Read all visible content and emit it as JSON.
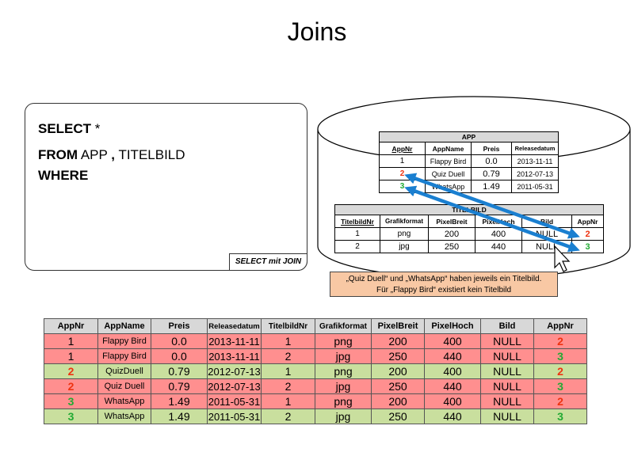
{
  "title": "Joins",
  "sql": {
    "select_kw": "SELECT",
    "select_rest": " *",
    "from_kw": "FROM",
    "from_table1": "APP",
    "comma": ",",
    "from_table2": "TITELBILD",
    "where_kw": "WHERE",
    "footer_label": "SELECT mit JOIN"
  },
  "app_table": {
    "caption": "APP",
    "headers": [
      "AppNr",
      "AppName",
      "Preis",
      "Releasedatum"
    ],
    "rows": [
      {
        "nr": "1",
        "name": "Flappy Bird",
        "preis": "0.0",
        "datum": "2013-11-11"
      },
      {
        "nr": "2",
        "name": "Quiz Duell",
        "preis": "0.79",
        "datum": "2012-07-13"
      },
      {
        "nr": "3",
        "name": "WhatsApp",
        "preis": "1.49",
        "datum": "2011-05-31"
      }
    ]
  },
  "titel_table": {
    "caption": "TITELBILD",
    "headers": [
      "TitelbildNr",
      "Grafikformat",
      "PixelBreit",
      "PixelHoch",
      "Bild",
      "AppNr"
    ],
    "rows": [
      {
        "nr": "1",
        "format": "png",
        "breit": "200",
        "hoch": "400",
        "bild": "NULL",
        "app": "2"
      },
      {
        "nr": "2",
        "format": "jpg",
        "breit": "250",
        "hoch": "440",
        "bild": "NULL",
        "app": "3"
      }
    ]
  },
  "note": {
    "line1": "„Quiz Duell“ und „WhatsApp“ haben jeweils ein Titelbild.",
    "line2": "Für „Flappy Bird“ existiert kein Titelbild"
  },
  "result": {
    "headers": [
      "AppNr",
      "AppName",
      "Preis",
      "Releasedatum",
      "TitelbildNr",
      "Grafikformat",
      "PixelBreit",
      "PixelHoch",
      "Bild",
      "AppNr"
    ],
    "rows": [
      {
        "nr": "1",
        "name": "Flappy Bird",
        "preis": "0.0",
        "datum": "2013-11-11",
        "tnr": "1",
        "format": "png",
        "breit": "200",
        "hoch": "400",
        "bild": "NULL",
        "app": "2",
        "match": false
      },
      {
        "nr": "1",
        "name": "Flappy Bird",
        "preis": "0.0",
        "datum": "2013-11-11",
        "tnr": "2",
        "format": "jpg",
        "breit": "250",
        "hoch": "440",
        "bild": "NULL",
        "app": "3",
        "match": false
      },
      {
        "nr": "2",
        "name": "QuizDuell",
        "preis": "0.79",
        "datum": "2012-07-13",
        "tnr": "1",
        "format": "png",
        "breit": "200",
        "hoch": "400",
        "bild": "NULL",
        "app": "2",
        "match": true
      },
      {
        "nr": "2",
        "name": "Quiz Duell",
        "preis": "0.79",
        "datum": "2012-07-13",
        "tnr": "2",
        "format": "jpg",
        "breit": "250",
        "hoch": "440",
        "bild": "NULL",
        "app": "3",
        "match": false
      },
      {
        "nr": "3",
        "name": "WhatsApp",
        "preis": "1.49",
        "datum": "2011-05-31",
        "tnr": "1",
        "format": "png",
        "breit": "200",
        "hoch": "400",
        "bild": "NULL",
        "app": "2",
        "match": false
      },
      {
        "nr": "3",
        "name": "WhatsApp",
        "preis": "1.49",
        "datum": "2011-05-31",
        "tnr": "2",
        "format": "jpg",
        "breit": "250",
        "hoch": "440",
        "bild": "NULL",
        "app": "3",
        "match": true
      }
    ]
  },
  "colors": {
    "match_row": "#c9df9e",
    "nomatch_row": "#ff8f8f",
    "key_2": "#ee3311",
    "key_3": "#22aa33",
    "arrow": "#1a7fd0",
    "note_bg": "#f8c8a4"
  }
}
